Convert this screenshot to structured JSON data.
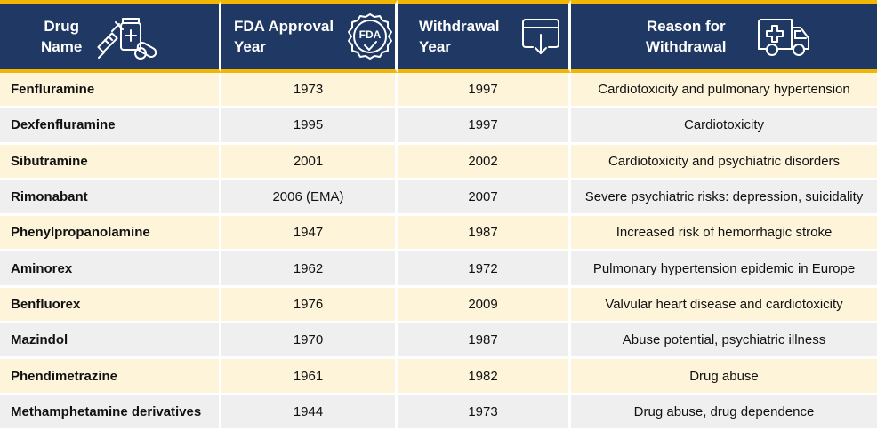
{
  "header": {
    "drug_name": "Drug\nName",
    "fda_approval_year": "FDA Approval\nYear",
    "withdrawal_year": "Withdrawal\nYear",
    "reason": "Reason for\nWithdrawal",
    "fda_badge_text": "FDA"
  },
  "icons": {
    "col1": "syringe-pill-bottle-icon",
    "col2": "fda-approved-badge-icon",
    "col3": "download-tray-icon",
    "col4": "ambulance-icon"
  },
  "colors": {
    "header_bg": "#1f3864",
    "accent": "#f2b705",
    "row_odd": "#fdf4d9",
    "row_even": "#efefef"
  },
  "rows": [
    {
      "name": "Fenfluramine",
      "approval": "1973",
      "withdrawal": "1997",
      "reason": "Cardiotoxicity and pulmonary hypertension"
    },
    {
      "name": "Dexfenfluramine",
      "approval": "1995",
      "withdrawal": "1997",
      "reason": "Cardiotoxicity"
    },
    {
      "name": "Sibutramine",
      "approval": "2001",
      "withdrawal": "2002",
      "reason": "Cardiotoxicity and psychiatric disorders"
    },
    {
      "name": "Rimonabant",
      "approval": "2006 (EMA)",
      "withdrawal": "2007",
      "reason": "Severe psychiatric risks: depression, suicidality"
    },
    {
      "name": "Phenylpropanolamine",
      "approval": "1947",
      "withdrawal": "1987",
      "reason": "Increased risk of hemorrhagic stroke"
    },
    {
      "name": "Aminorex",
      "approval": "1962",
      "withdrawal": "1972",
      "reason": "Pulmonary hypertension epidemic in Europe"
    },
    {
      "name": "Benfluorex",
      "approval": "1976",
      "withdrawal": "2009",
      "reason": "Valvular heart disease and cardiotoxicity"
    },
    {
      "name": "Mazindol",
      "approval": "1970",
      "withdrawal": "1987",
      "reason": "Abuse potential, psychiatric illness"
    },
    {
      "name": "Phendimetrazine",
      "approval": "1961",
      "withdrawal": "1982",
      "reason": "Drug abuse"
    },
    {
      "name": "Methamphetamine derivatives",
      "approval": "1944",
      "withdrawal": "1973",
      "reason": "Drug abuse, drug dependence"
    }
  ]
}
